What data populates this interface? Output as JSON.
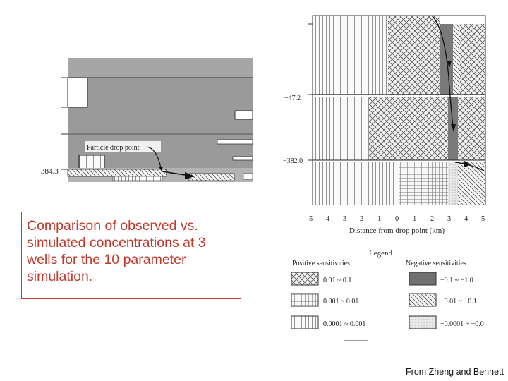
{
  "caption": "Comparison of observed vs. simulated concentrations at 3 wells for the 10 parameter simulation.",
  "credit": "From Zheng and Bennett",
  "left_panel": {
    "drop_point_label": "Particle drop point",
    "y_label": "384.3"
  },
  "right_panel": {
    "y_labels": [
      "−47.2",
      "−382.0"
    ],
    "x_ticks": [
      "5",
      "4",
      "3",
      "2",
      "1",
      "0",
      "1",
      "2",
      "3",
      "4",
      "5"
    ],
    "x_axis_label": "Distance from drop point (km)"
  },
  "legend": {
    "title": "Legend",
    "positive_title": "Positive sensitivities",
    "negative_title": "Negative sensitivities",
    "positive": [
      "0.01 ~ 0.1",
      "0.001 ~ 0.01",
      "0.0001 ~ 0.001"
    ],
    "negative": [
      "−0.1 ~ −1.0",
      "−0.01 ~ −0.1",
      "−0.0001 ~ −0.0"
    ]
  },
  "colors": {
    "caption_red": "#c0392b"
  }
}
